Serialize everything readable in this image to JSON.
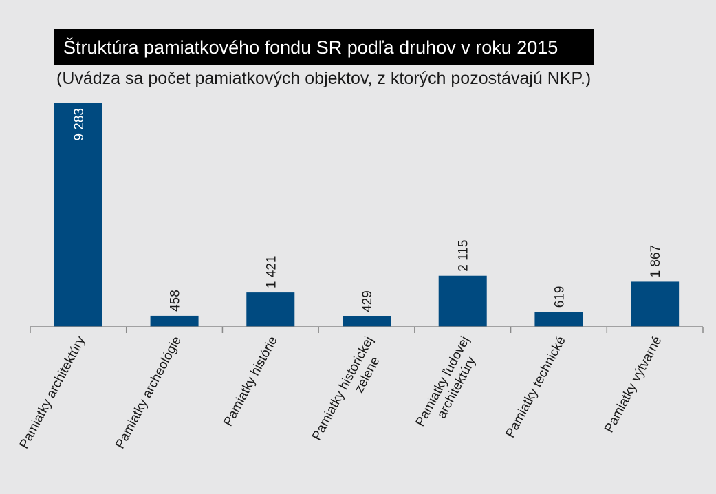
{
  "chart_data": {
    "type": "bar",
    "title": "Štruktúra pamiatkového fondu SR podľa druhov v roku 2015",
    "subtitle": "(Uvádza sa počet pamiatkových objektov, z ktorých pozostávajú NKP.)",
    "categories": [
      [
        "Pamiatky architektúry"
      ],
      [
        "Pamiatky archeológie"
      ],
      [
        "Pamiatky histórie"
      ],
      [
        "Pamiatky historickej",
        "zelene"
      ],
      [
        "Pamiatky ľudovej",
        "architektúry"
      ],
      [
        "Pamiatky technické"
      ],
      [
        "Pamiatky výtvarné"
      ]
    ],
    "values": [
      9283,
      458,
      1421,
      429,
      2115,
      619,
      1867
    ],
    "value_labels": [
      "9 283",
      "458",
      "1 421",
      "429",
      "2 115",
      "619",
      "1 867"
    ],
    "ylim": [
      0,
      9283
    ],
    "grid": false,
    "colors": {
      "bar": "#004a80",
      "background": "#e7e7e8",
      "title_bg": "#000000"
    }
  }
}
